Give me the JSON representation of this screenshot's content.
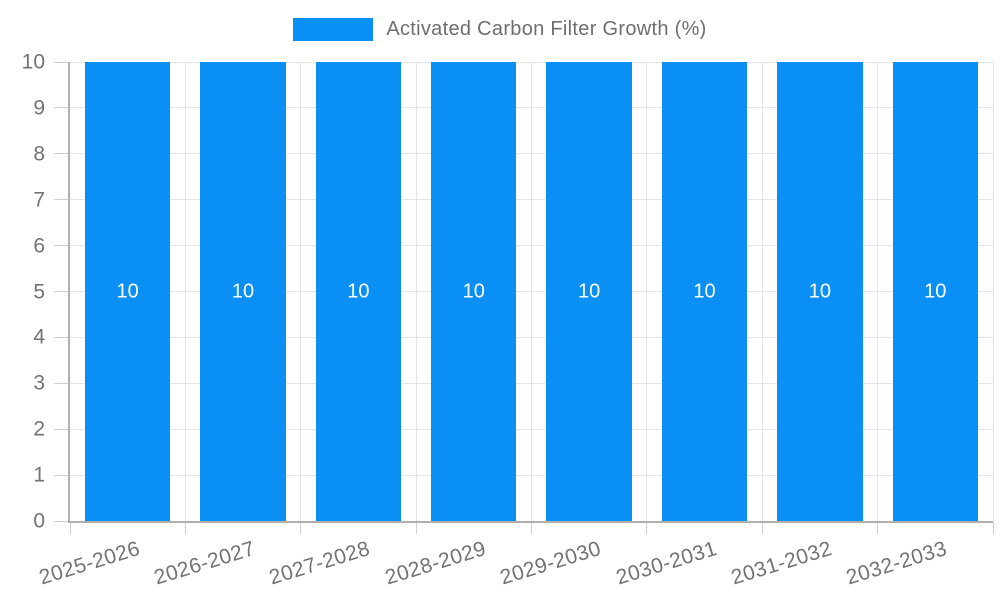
{
  "chart_data": {
    "type": "bar",
    "title": "",
    "legend": {
      "position": "top",
      "label": "Activated Carbon Filter Growth (%)"
    },
    "categories": [
      "2025-2026",
      "2026-2027",
      "2027-2028",
      "2028-2029",
      "2029-2030",
      "2030-2031",
      "2031-2032",
      "2032-2033"
    ],
    "series": [
      {
        "name": "Activated Carbon Filter Growth (%)",
        "values": [
          10,
          10,
          10,
          10,
          10,
          10,
          10,
          10
        ]
      }
    ],
    "bar_value_labels": [
      "10",
      "10",
      "10",
      "10",
      "10",
      "10",
      "10",
      "10"
    ],
    "xlabel": "",
    "ylabel": "",
    "ylim": [
      0,
      10
    ],
    "yticks": [
      0,
      1,
      2,
      3,
      4,
      5,
      6,
      7,
      8,
      9,
      10
    ],
    "grid": true,
    "x_label_rotation_deg": -17
  },
  "colors": {
    "background": "#FFFFFF",
    "bar": "#0A90F5",
    "grid": "#E5E5E5",
    "axis": "#B0B0B0",
    "tick": "#CFCFCF",
    "axis_text": "#737373",
    "legend_text": "#6E6E6E",
    "value_text": "#FFFFFF"
  }
}
